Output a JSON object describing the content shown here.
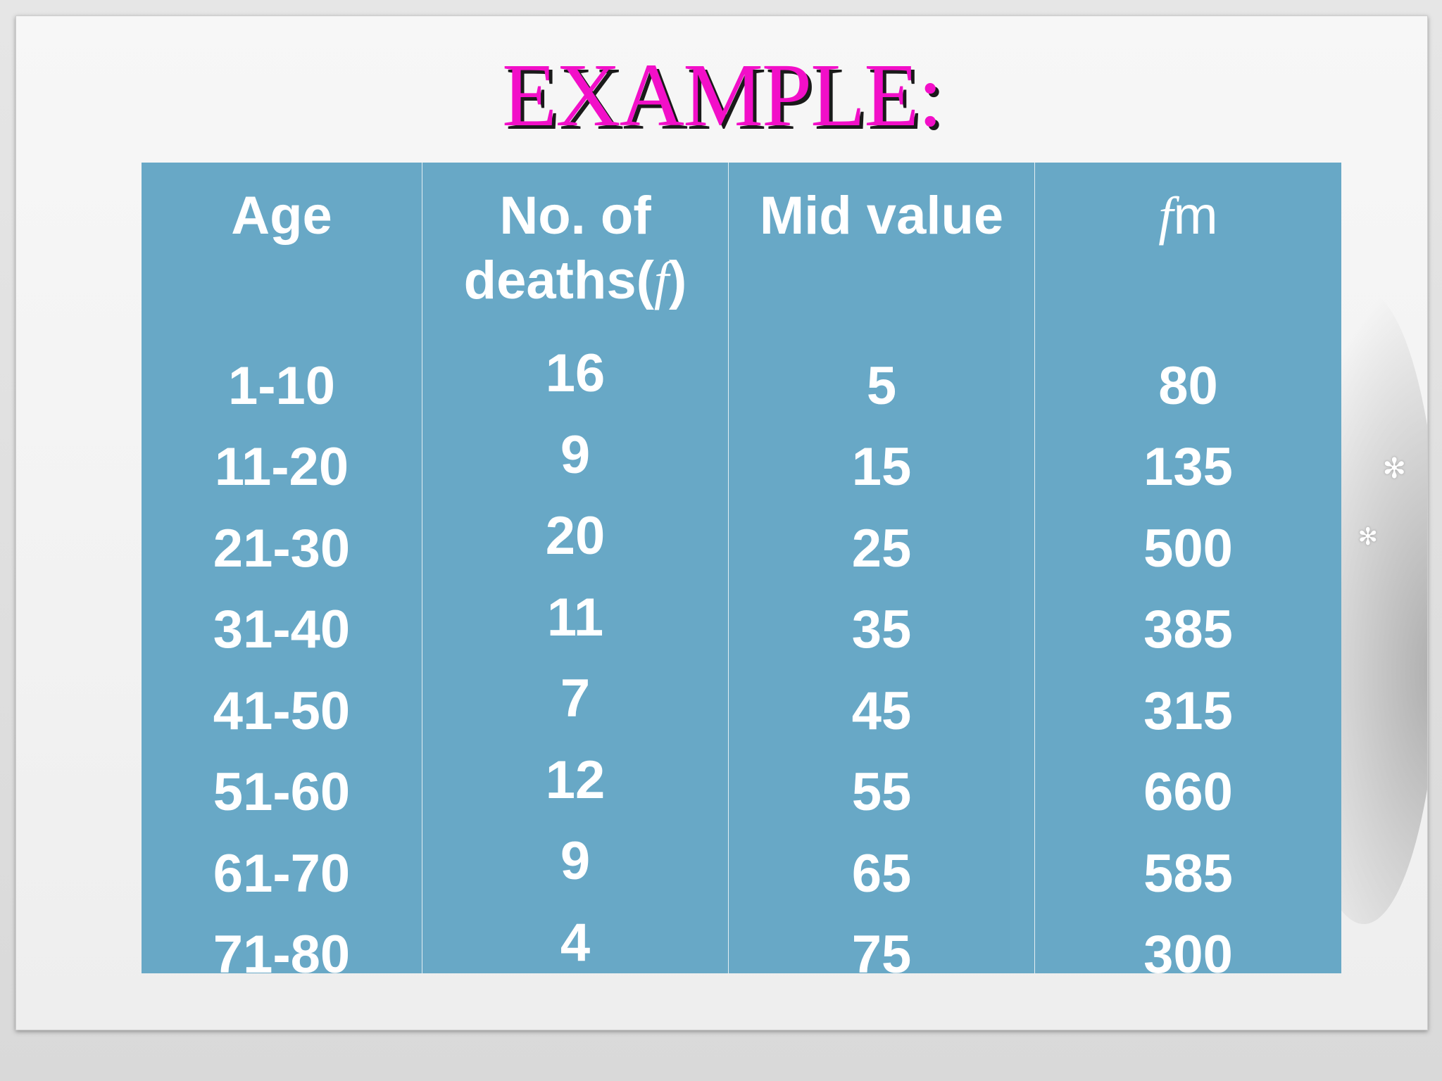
{
  "title": "EXAMPLE:",
  "table": {
    "headers": {
      "age": "Age",
      "deaths_line1": "No. of",
      "deaths_line2_prefix": "deaths(",
      "deaths_symbol": "f",
      "deaths_line2_suffix": ")",
      "mid": "Mid value",
      "fm_f": "f",
      "fm_m": "m"
    },
    "rows": [
      {
        "age": "1-10",
        "deaths": "16",
        "mid": "5",
        "fm": "80"
      },
      {
        "age": "11-20",
        "deaths": "9",
        "mid": "15",
        "fm": "135"
      },
      {
        "age": "21-30",
        "deaths": "20",
        "mid": "25",
        "fm": "500"
      },
      {
        "age": "31-40",
        "deaths": "11",
        "mid": "35",
        "fm": "385"
      },
      {
        "age": "41-50",
        "deaths": "7",
        "mid": "45",
        "fm": "315"
      },
      {
        "age": "51-60",
        "deaths": "12",
        "mid": "55",
        "fm": "660"
      },
      {
        "age": "61-70",
        "deaths": "9",
        "mid": "65",
        "fm": "585"
      },
      {
        "age": "71-80",
        "deaths": "4",
        "mid": "75",
        "fm": "300"
      }
    ]
  },
  "colors": {
    "title": "#f20fc8",
    "table_bg": "#68a8c6",
    "text": "#ffffff"
  }
}
